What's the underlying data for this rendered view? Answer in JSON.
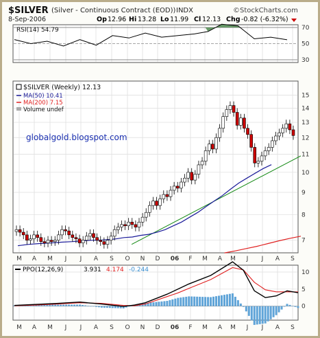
{
  "header": {
    "symbol": "$SILVER",
    "name": "(Silver - Continuous Contract (EOD))",
    "exchange": "INDX",
    "site": "©StockCharts.com",
    "date": "8-Sep-2006",
    "quote": {
      "open_label": "Op",
      "open": "12.96",
      "high_label": "Hi",
      "high": "13.28",
      "low_label": "Lo",
      "low": "11.99",
      "close_label": "Cl",
      "close": "12.13",
      "change_label": "Chg",
      "change": "-0.82 (-6.32%)"
    }
  },
  "watermark": "globalgold.blogspot.com",
  "colors": {
    "frame": "#b9ac8a",
    "grid": "#dcdcdc",
    "up_candle": "#ffffff",
    "down_candle": "#cc0000",
    "ma50": "#1a1a99",
    "ma200": "#e02020",
    "trendline": "#118811",
    "rsi_fill": "#4f8a4f",
    "macd_hist": "#5fa4d8",
    "ppo_line": "#000000",
    "signal_line": "#e02020",
    "histogram_text": "#3a8fd0"
  },
  "chart_data": [
    {
      "type": "line",
      "title": "RSI(14) 54.79",
      "indicator": "RSI(14)",
      "last_value": "54.79",
      "ylim": [
        30,
        70
      ],
      "yticks": [
        "70",
        "50",
        "30"
      ],
      "overbought": 70,
      "oversold": 30,
      "week_index": [
        0,
        6,
        12,
        18,
        24,
        30,
        36,
        42,
        48,
        54,
        60,
        66,
        71,
        76,
        82,
        88,
        94,
        100
      ],
      "values": [
        55,
        50,
        53,
        47,
        55,
        48,
        60,
        57,
        63,
        58,
        60,
        62,
        65,
        74,
        72,
        56,
        58,
        54.79
      ]
    },
    {
      "type": "candlestick",
      "title": "$SILVER (Weekly) 12.13",
      "legend": [
        {
          "label": "$SILVER (Weekly) 12.13",
          "color": "#000000"
        },
        {
          "label": "MA(50) 10.41",
          "color": "#1a1a99"
        },
        {
          "label": "MA(200) 7.15",
          "color": "#e02020"
        },
        {
          "label": "Volume undef",
          "color": "#000000"
        }
      ],
      "scale": "log",
      "ylim": [
        6.6,
        15.8
      ],
      "yticks": [
        15,
        14,
        13,
        12,
        11,
        10,
        9,
        8,
        7
      ],
      "x_labels": [
        "M",
        "A",
        "M",
        "J",
        "J",
        "A",
        "S",
        "O",
        "N",
        "D",
        "06",
        "F",
        "M",
        "A",
        "M",
        "J",
        "J",
        "A",
        "S"
      ],
      "close": [
        7.4,
        7.3,
        7.2,
        7.0,
        7.05,
        7.2,
        7.1,
        6.95,
        6.9,
        7.0,
        6.95,
        7.0,
        7.2,
        7.4,
        7.35,
        7.2,
        7.1,
        7.05,
        6.9,
        7.0,
        7.15,
        7.25,
        7.1,
        7.0,
        6.95,
        6.85,
        7.0,
        7.15,
        7.4,
        7.5,
        7.6,
        7.55,
        7.7,
        7.6,
        7.5,
        7.7,
        7.9,
        8.1,
        8.4,
        8.6,
        8.4,
        8.7,
        8.9,
        8.8,
        9.1,
        9.3,
        9.2,
        9.5,
        9.7,
        10.0,
        9.6,
        9.9,
        10.4,
        10.6,
        11.2,
        11.6,
        11.3,
        12.0,
        12.6,
        13.4,
        13.9,
        14.2,
        13.7,
        12.8,
        13.3,
        12.6,
        12.2,
        11.4,
        10.5,
        10.6,
        10.9,
        11.2,
        11.4,
        11.8,
        12.1,
        12.3,
        12.6,
        12.9,
        12.5,
        12.13
      ],
      "ma50": [
        6.8,
        6.85,
        6.88,
        6.9,
        6.93,
        6.95,
        6.98,
        7.0,
        7.0,
        7.02,
        7.05,
        7.1,
        7.12,
        7.18,
        7.22,
        7.3,
        7.4,
        7.55,
        7.7,
        7.9,
        8.1,
        8.35,
        8.6,
        8.85,
        9.15,
        9.45,
        9.7,
        9.95,
        10.2,
        10.41
      ],
      "ma50_week_index": [
        0,
        4,
        8,
        12,
        16,
        20,
        24,
        27,
        30,
        33,
        36,
        39,
        42,
        45,
        48,
        51,
        54,
        57,
        60,
        63,
        66,
        69,
        72,
        75,
        78,
        81,
        84,
        87,
        90,
        93
      ],
      "ma200": [
        6.55,
        6.62,
        6.7,
        6.78,
        6.88,
        6.98,
        7.07,
        7.15
      ],
      "ma200_week_index": [
        72,
        76,
        80,
        84,
        88,
        92,
        96,
        100
      ],
      "trendline": {
        "from_week": 43,
        "from_value": 6.85,
        "to_week": 105,
        "to_value": 10.9
      }
    },
    {
      "type": "line",
      "title": "PPO(12,26,9)",
      "legend": [
        {
          "label": "PPO(12,26,9)",
          "value": "3.931",
          "color": "#000000"
        },
        {
          "label": "Signal",
          "value": "4.174",
          "color": "#e02020"
        },
        {
          "label": "Histogram",
          "value": "-0.244",
          "color": "#3a8fd0"
        }
      ],
      "ylim": [
        -3.5,
        11
      ],
      "yticks": [
        10,
        5,
        0
      ],
      "x_labels": [
        "M",
        "A",
        "M",
        "J",
        "J",
        "A",
        "S",
        "O",
        "N",
        "D",
        "06",
        "F",
        "M",
        "A",
        "M",
        "J",
        "J",
        "A",
        "S"
      ],
      "week_index": [
        0,
        8,
        16,
        24,
        32,
        40,
        44,
        48,
        56,
        60,
        64,
        72,
        80,
        84,
        88,
        92,
        96,
        100,
        104
      ],
      "ppo": [
        0.2,
        0.5,
        0.8,
        1.2,
        0.6,
        -0.1,
        0.3,
        1.0,
        3.5,
        5.0,
        6.5,
        9.0,
        13.0,
        10.5,
        4.5,
        2.5,
        3.0,
        4.5,
        3.931
      ],
      "signal": [
        0.1,
        0.3,
        0.6,
        1.0,
        0.8,
        0.2,
        0.1,
        0.6,
        2.8,
        3.9,
        5.2,
        7.8,
        11.3,
        10.6,
        7.0,
        4.8,
        4.2,
        4.2,
        4.174
      ],
      "histogram_last": -0.244
    }
  ]
}
